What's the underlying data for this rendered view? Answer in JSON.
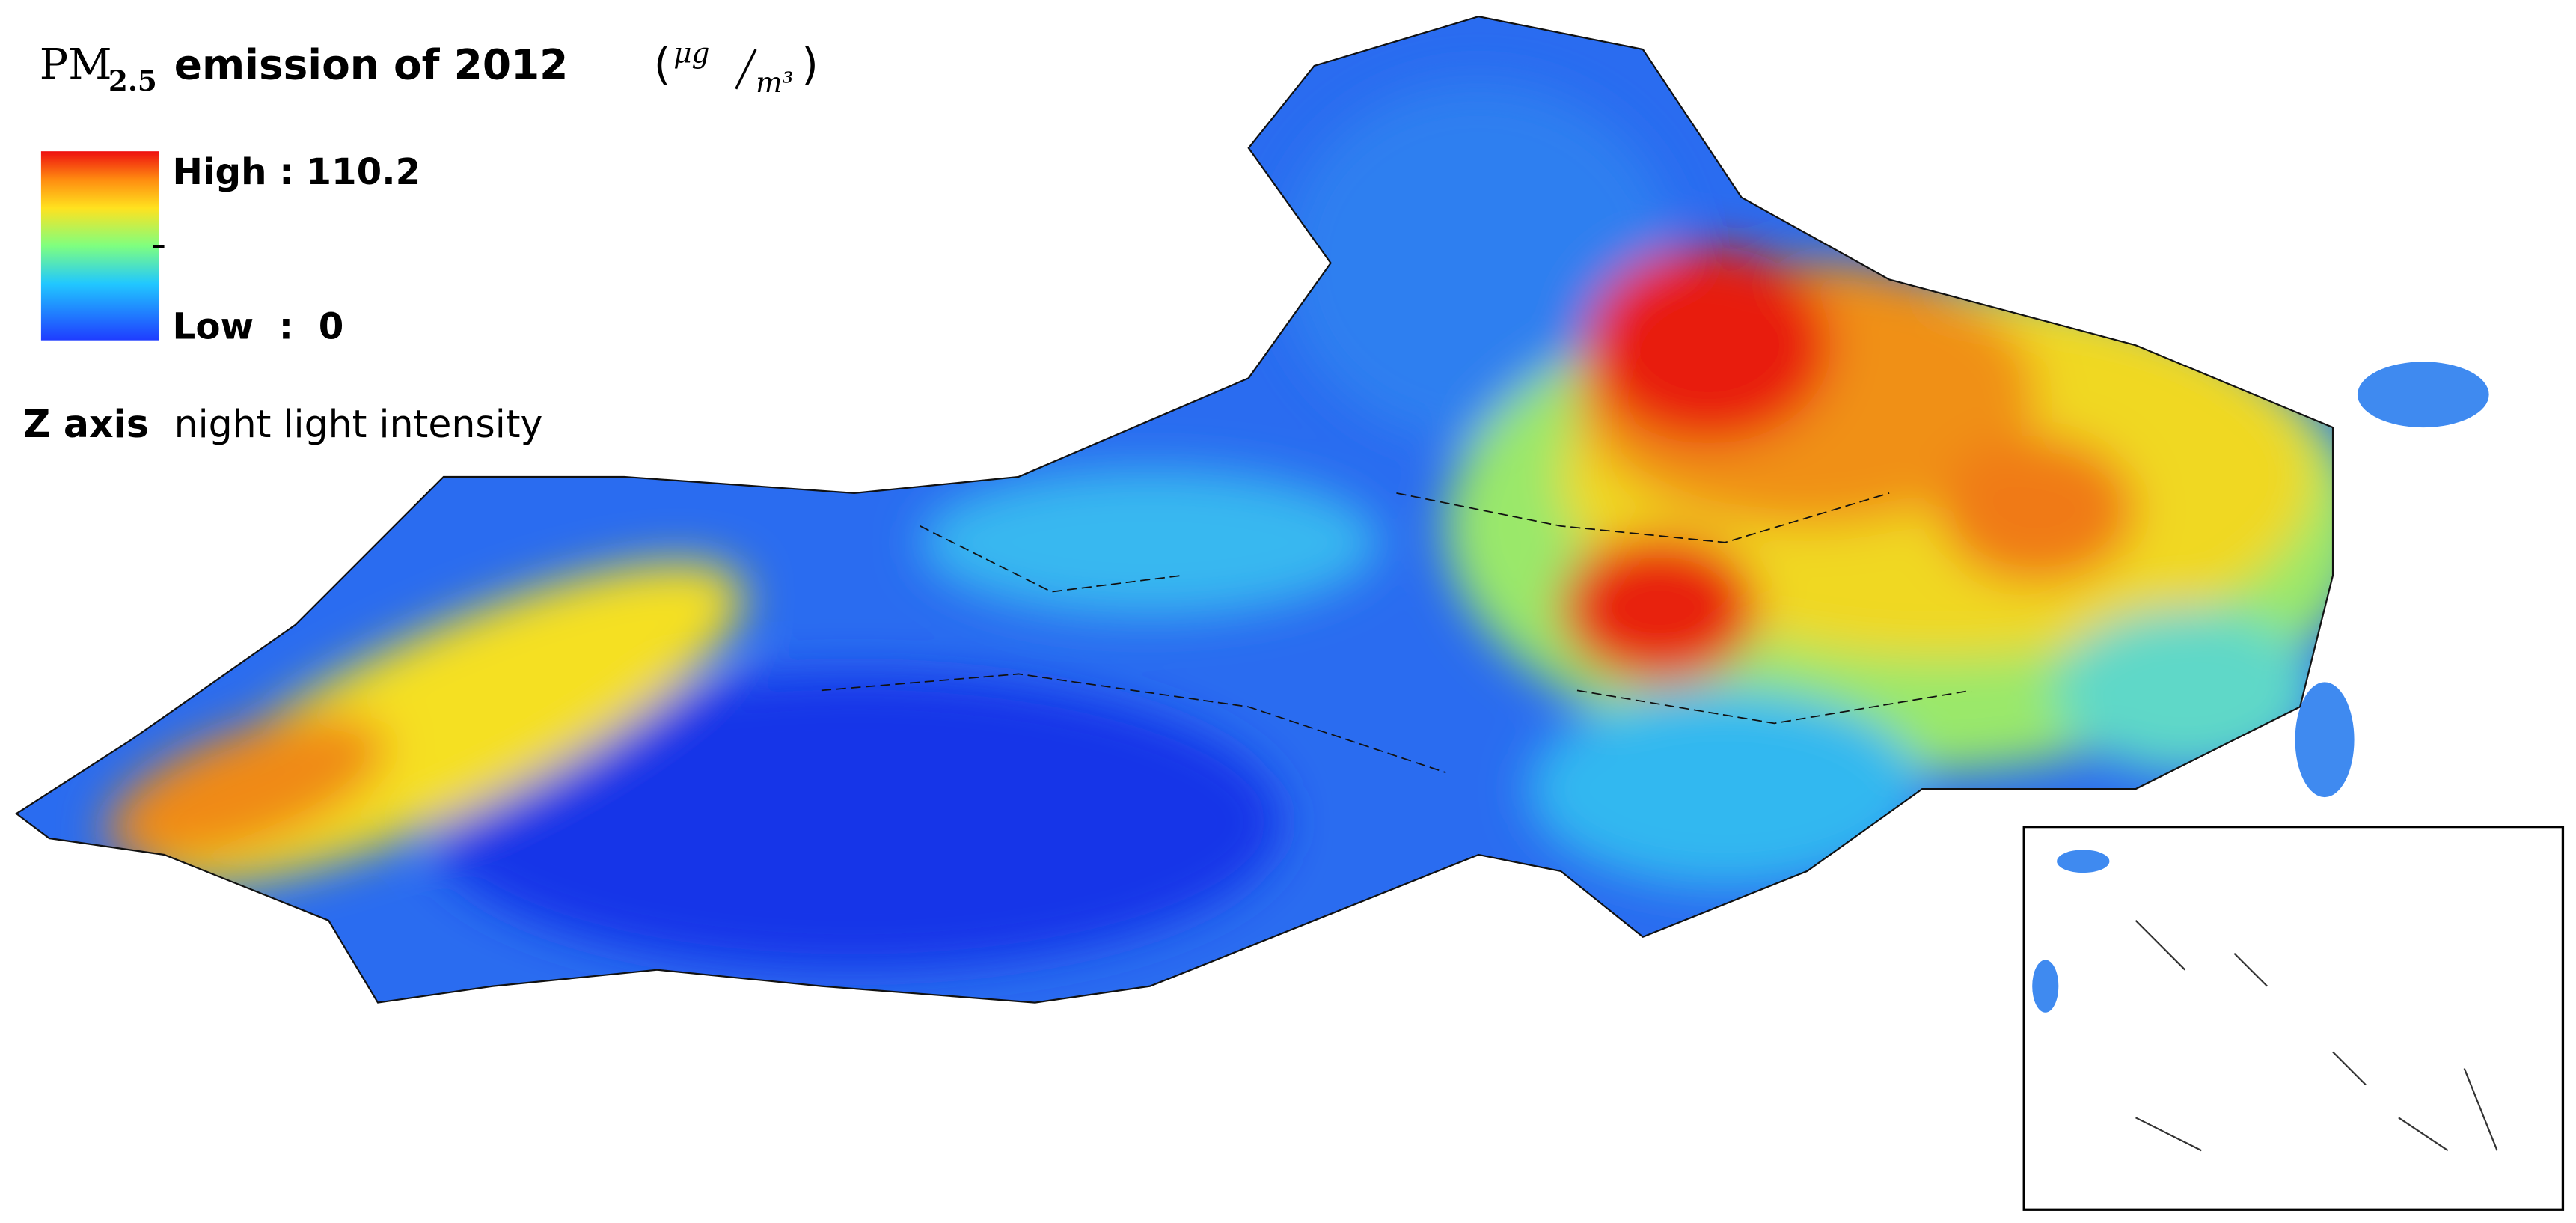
{
  "header": {
    "title": {
      "prefix": "PM",
      "subscript": "2.5",
      "text": "emission of 2012",
      "unit_numerator": "μg",
      "unit_denominator": "m³"
    }
  },
  "legend": {
    "high": "High : 110.2",
    "low": "Low  :  0"
  },
  "note": {
    "bold": "Z axis",
    "text": "night light intensity"
  }
}
